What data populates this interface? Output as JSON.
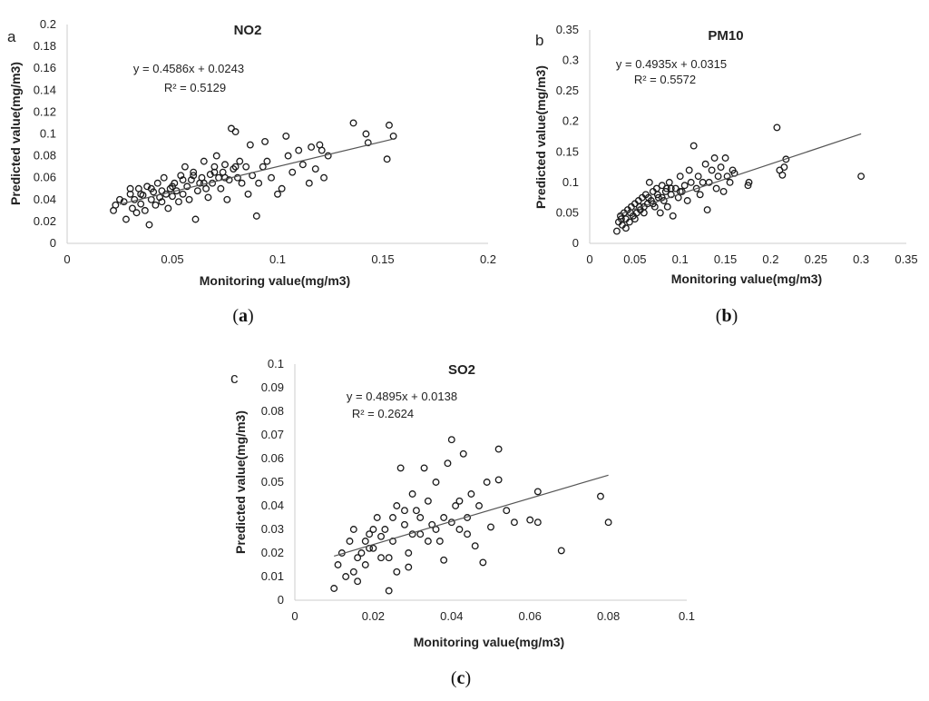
{
  "chart_data": [
    {
      "type": "scatter",
      "panel_letter": "a",
      "caption_letter": "a",
      "title": "NO2",
      "xlabel": "Monitoring value(mg/m3)",
      "ylabel": "Predicted value(mg/m3)",
      "xlim": [
        0,
        0.2
      ],
      "ylim": [
        0,
        0.2
      ],
      "xticks": [
        "0",
        "0.05",
        "0.1",
        "0.15",
        "0.2"
      ],
      "yticks": [
        "0",
        "0.02",
        "0.04",
        "0.06",
        "0.08",
        "0.1",
        "0.12",
        "0.14",
        "0.16",
        "0.18",
        "0.2"
      ],
      "equation": "y = 0.4586x + 0.0243",
      "r2": "R² = 0.5129",
      "trend": {
        "slope": 0.4586,
        "intercept": 0.0243,
        "x_range": [
          0.025,
          0.155
        ]
      },
      "points": [
        [
          0.022,
          0.03
        ],
        [
          0.023,
          0.035
        ],
        [
          0.025,
          0.04
        ],
        [
          0.027,
          0.038
        ],
        [
          0.028,
          0.022
        ],
        [
          0.03,
          0.045
        ],
        [
          0.031,
          0.032
        ],
        [
          0.032,
          0.04
        ],
        [
          0.033,
          0.028
        ],
        [
          0.034,
          0.05
        ],
        [
          0.035,
          0.036
        ],
        [
          0.036,
          0.044
        ],
        [
          0.037,
          0.03
        ],
        [
          0.038,
          0.052
        ],
        [
          0.039,
          0.017
        ],
        [
          0.04,
          0.04
        ],
        [
          0.041,
          0.047
        ],
        [
          0.042,
          0.035
        ],
        [
          0.043,
          0.055
        ],
        [
          0.044,
          0.042
        ],
        [
          0.045,
          0.038
        ],
        [
          0.046,
          0.06
        ],
        [
          0.047,
          0.045
        ],
        [
          0.048,
          0.032
        ],
        [
          0.049,
          0.05
        ],
        [
          0.05,
          0.043
        ],
        [
          0.051,
          0.055
        ],
        [
          0.052,
          0.048
        ],
        [
          0.053,
          0.038
        ],
        [
          0.054,
          0.062
        ],
        [
          0.055,
          0.045
        ],
        [
          0.056,
          0.07
        ],
        [
          0.057,
          0.052
        ],
        [
          0.058,
          0.04
        ],
        [
          0.059,
          0.058
        ],
        [
          0.06,
          0.065
        ],
        [
          0.061,
          0.022
        ],
        [
          0.062,
          0.048
        ],
        [
          0.063,
          0.055
        ],
        [
          0.064,
          0.06
        ],
        [
          0.065,
          0.075
        ],
        [
          0.066,
          0.05
        ],
        [
          0.067,
          0.042
        ],
        [
          0.068,
          0.063
        ],
        [
          0.069,
          0.055
        ],
        [
          0.07,
          0.07
        ],
        [
          0.071,
          0.08
        ],
        [
          0.072,
          0.06
        ],
        [
          0.073,
          0.05
        ],
        [
          0.074,
          0.065
        ],
        [
          0.075,
          0.072
        ],
        [
          0.076,
          0.04
        ],
        [
          0.077,
          0.058
        ],
        [
          0.078,
          0.105
        ],
        [
          0.079,
          0.068
        ],
        [
          0.08,
          0.102
        ],
        [
          0.081,
          0.06
        ],
        [
          0.082,
          0.075
        ],
        [
          0.083,
          0.055
        ],
        [
          0.085,
          0.07
        ],
        [
          0.086,
          0.045
        ],
        [
          0.087,
          0.09
        ],
        [
          0.088,
          0.062
        ],
        [
          0.09,
          0.025
        ],
        [
          0.091,
          0.055
        ],
        [
          0.093,
          0.07
        ],
        [
          0.094,
          0.093
        ],
        [
          0.095,
          0.075
        ],
        [
          0.097,
          0.06
        ],
        [
          0.1,
          0.045
        ],
        [
          0.102,
          0.05
        ],
        [
          0.104,
          0.098
        ],
        [
          0.105,
          0.08
        ],
        [
          0.107,
          0.065
        ],
        [
          0.11,
          0.085
        ],
        [
          0.112,
          0.072
        ],
        [
          0.115,
          0.055
        ],
        [
          0.116,
          0.088
        ],
        [
          0.118,
          0.068
        ],
        [
          0.12,
          0.09
        ],
        [
          0.121,
          0.085
        ],
        [
          0.122,
          0.06
        ],
        [
          0.124,
          0.08
        ],
        [
          0.136,
          0.11
        ],
        [
          0.142,
          0.1
        ],
        [
          0.143,
          0.092
        ],
        [
          0.152,
          0.077
        ],
        [
          0.153,
          0.108
        ],
        [
          0.155,
          0.098
        ],
        [
          0.035,
          0.045
        ],
        [
          0.04,
          0.05
        ],
        [
          0.045,
          0.048
        ],
        [
          0.05,
          0.052
        ],
        [
          0.055,
          0.058
        ],
        [
          0.06,
          0.062
        ],
        [
          0.065,
          0.055
        ],
        [
          0.07,
          0.065
        ],
        [
          0.075,
          0.06
        ],
        [
          0.08,
          0.07
        ],
        [
          0.03,
          0.05
        ]
      ]
    },
    {
      "type": "scatter",
      "panel_letter": "b",
      "caption_letter": "b",
      "title": "PM10",
      "xlabel": "Monitoring value(mg/m3)",
      "ylabel": "Predicted value(mg/m3)",
      "xlim": [
        0,
        0.35
      ],
      "ylim": [
        0,
        0.35
      ],
      "xticks": [
        "0",
        "0.05",
        "0.1",
        "0.15",
        "0.2",
        "0.25",
        "0.3",
        "0.35"
      ],
      "yticks": [
        "0",
        "0.05",
        "0.1",
        "0.15",
        "0.2",
        "0.25",
        "0.3",
        "0.35"
      ],
      "equation": "y = 0.4935x + 0.0315",
      "r2": "R² = 0.5572",
      "trend": {
        "slope": 0.4935,
        "intercept": 0.0315,
        "x_range": [
          0.03,
          0.3
        ]
      },
      "points": [
        [
          0.03,
          0.02
        ],
        [
          0.032,
          0.035
        ],
        [
          0.034,
          0.045
        ],
        [
          0.036,
          0.03
        ],
        [
          0.038,
          0.05
        ],
        [
          0.04,
          0.04
        ],
        [
          0.042,
          0.055
        ],
        [
          0.044,
          0.035
        ],
        [
          0.046,
          0.06
        ],
        [
          0.048,
          0.045
        ],
        [
          0.05,
          0.065
        ],
        [
          0.052,
          0.05
        ],
        [
          0.054,
          0.07
        ],
        [
          0.056,
          0.055
        ],
        [
          0.058,
          0.075
        ],
        [
          0.06,
          0.06
        ],
        [
          0.062,
          0.08
        ],
        [
          0.064,
          0.065
        ],
        [
          0.066,
          0.1
        ],
        [
          0.068,
          0.07
        ],
        [
          0.07,
          0.085
        ],
        [
          0.072,
          0.06
        ],
        [
          0.074,
          0.09
        ],
        [
          0.076,
          0.075
        ],
        [
          0.078,
          0.05
        ],
        [
          0.08,
          0.095
        ],
        [
          0.082,
          0.07
        ],
        [
          0.084,
          0.085
        ],
        [
          0.086,
          0.06
        ],
        [
          0.088,
          0.1
        ],
        [
          0.09,
          0.08
        ],
        [
          0.092,
          0.045
        ],
        [
          0.095,
          0.09
        ],
        [
          0.098,
          0.075
        ],
        [
          0.1,
          0.11
        ],
        [
          0.102,
          0.085
        ],
        [
          0.105,
          0.095
        ],
        [
          0.108,
          0.07
        ],
        [
          0.11,
          0.12
        ],
        [
          0.112,
          0.1
        ],
        [
          0.115,
          0.16
        ],
        [
          0.118,
          0.09
        ],
        [
          0.12,
          0.11
        ],
        [
          0.122,
          0.08
        ],
        [
          0.125,
          0.1
        ],
        [
          0.128,
          0.13
        ],
        [
          0.13,
          0.055
        ],
        [
          0.132,
          0.1
        ],
        [
          0.135,
          0.12
        ],
        [
          0.138,
          0.14
        ],
        [
          0.14,
          0.09
        ],
        [
          0.142,
          0.11
        ],
        [
          0.145,
          0.125
        ],
        [
          0.148,
          0.085
        ],
        [
          0.15,
          0.14
        ],
        [
          0.152,
          0.11
        ],
        [
          0.155,
          0.1
        ],
        [
          0.158,
          0.12
        ],
        [
          0.16,
          0.115
        ],
        [
          0.175,
          0.095
        ],
        [
          0.176,
          0.1
        ],
        [
          0.207,
          0.19
        ],
        [
          0.21,
          0.12
        ],
        [
          0.213,
          0.112
        ],
        [
          0.215,
          0.125
        ],
        [
          0.217,
          0.138
        ],
        [
          0.3,
          0.11
        ],
        [
          0.04,
          0.025
        ],
        [
          0.05,
          0.04
        ],
        [
          0.06,
          0.05
        ],
        [
          0.07,
          0.065
        ],
        [
          0.08,
          0.075
        ],
        [
          0.09,
          0.09
        ],
        [
          0.1,
          0.085
        ],
        [
          0.065,
          0.075
        ],
        [
          0.075,
          0.08
        ],
        [
          0.085,
          0.09
        ],
        [
          0.055,
          0.06
        ],
        [
          0.045,
          0.05
        ],
        [
          0.035,
          0.04
        ]
      ]
    },
    {
      "type": "scatter",
      "panel_letter": "c",
      "caption_letter": "c",
      "title": "SO2",
      "xlabel": "Monitoring value(mg/m3)",
      "ylabel": "Predicted value(mg/m3)",
      "xlim": [
        0,
        0.1
      ],
      "ylim": [
        0,
        0.1
      ],
      "xticks": [
        "0",
        "0.02",
        "0.04",
        "0.06",
        "0.08",
        "0.1"
      ],
      "yticks": [
        "0",
        "0.01",
        "0.02",
        "0.03",
        "0.04",
        "0.05",
        "0.06",
        "0.07",
        "0.08",
        "0.09",
        "0.1"
      ],
      "equation": "y = 0.4895x + 0.0138",
      "r2": "R² = 0.2624",
      "trend": {
        "slope": 0.4895,
        "intercept": 0.0138,
        "x_range": [
          0.01,
          0.08
        ]
      },
      "points": [
        [
          0.01,
          0.005
        ],
        [
          0.011,
          0.015
        ],
        [
          0.012,
          0.02
        ],
        [
          0.013,
          0.01
        ],
        [
          0.014,
          0.025
        ],
        [
          0.015,
          0.03
        ],
        [
          0.016,
          0.008
        ],
        [
          0.017,
          0.02
        ],
        [
          0.018,
          0.015
        ],
        [
          0.019,
          0.028
        ],
        [
          0.02,
          0.022
        ],
        [
          0.021,
          0.035
        ],
        [
          0.022,
          0.018
        ],
        [
          0.023,
          0.03
        ],
        [
          0.024,
          0.004
        ],
        [
          0.025,
          0.025
        ],
        [
          0.026,
          0.04
        ],
        [
          0.027,
          0.056
        ],
        [
          0.028,
          0.032
        ],
        [
          0.029,
          0.02
        ],
        [
          0.03,
          0.045
        ],
        [
          0.031,
          0.038
        ],
        [
          0.032,
          0.028
        ],
        [
          0.033,
          0.056
        ],
        [
          0.034,
          0.042
        ],
        [
          0.035,
          0.032
        ],
        [
          0.036,
          0.05
        ],
        [
          0.037,
          0.025
        ],
        [
          0.038,
          0.017
        ],
        [
          0.039,
          0.058
        ],
        [
          0.04,
          0.068
        ],
        [
          0.041,
          0.04
        ],
        [
          0.042,
          0.03
        ],
        [
          0.043,
          0.062
        ],
        [
          0.044,
          0.035
        ],
        [
          0.045,
          0.045
        ],
        [
          0.046,
          0.023
        ],
        [
          0.047,
          0.04
        ],
        [
          0.048,
          0.016
        ],
        [
          0.049,
          0.05
        ],
        [
          0.05,
          0.031
        ],
        [
          0.052,
          0.064
        ],
        [
          0.052,
          0.051
        ],
        [
          0.054,
          0.038
        ],
        [
          0.056,
          0.033
        ],
        [
          0.06,
          0.034
        ],
        [
          0.062,
          0.046
        ],
        [
          0.062,
          0.033
        ],
        [
          0.068,
          0.021
        ],
        [
          0.078,
          0.044
        ],
        [
          0.08,
          0.033
        ],
        [
          0.015,
          0.012
        ],
        [
          0.018,
          0.025
        ],
        [
          0.02,
          0.03
        ],
        [
          0.022,
          0.027
        ],
        [
          0.025,
          0.035
        ],
        [
          0.028,
          0.038
        ],
        [
          0.03,
          0.028
        ],
        [
          0.032,
          0.035
        ],
        [
          0.034,
          0.025
        ],
        [
          0.036,
          0.03
        ],
        [
          0.038,
          0.035
        ],
        [
          0.04,
          0.033
        ],
        [
          0.042,
          0.042
        ],
        [
          0.044,
          0.028
        ],
        [
          0.016,
          0.018
        ],
        [
          0.019,
          0.022
        ],
        [
          0.024,
          0.018
        ],
        [
          0.026,
          0.012
        ],
        [
          0.029,
          0.014
        ]
      ]
    }
  ]
}
